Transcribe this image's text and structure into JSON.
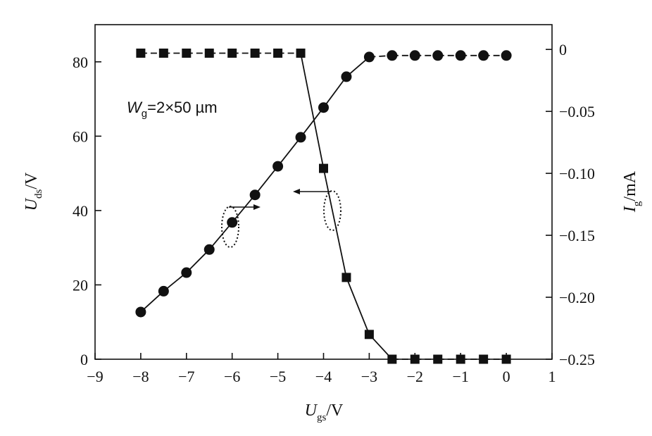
{
  "chart_data": {
    "type": "line",
    "x_axis": {
      "label_main": "U",
      "label_sub": "gs",
      "label_unit": "/V",
      "range": [
        -9,
        1
      ],
      "ticks": [
        -9,
        -8,
        -7,
        -6,
        -5,
        -4,
        -3,
        -2,
        -1,
        0,
        1
      ],
      "tick_labels": [
        "−9",
        "−8",
        "−7",
        "−6",
        "−5",
        "−4",
        "−3",
        "−2",
        "−1",
        "0",
        "1"
      ]
    },
    "y_left": {
      "label_main": "U",
      "label_sub": "ds",
      "label_unit": "/V",
      "range": [
        0,
        90
      ],
      "ticks": [
        0,
        20,
        40,
        60,
        80
      ],
      "tick_labels": [
        "0",
        "20",
        "40",
        "60",
        "80"
      ]
    },
    "y_right": {
      "label_main": "I",
      "label_sub": "g",
      "label_unit": "/mA",
      "range": [
        -0.25,
        0.02
      ],
      "ticks": [
        0,
        -0.05,
        -0.1,
        -0.15,
        -0.2,
        -0.25
      ],
      "tick_labels": [
        "0",
        "−0.05",
        "−0.10",
        "−0.15",
        "−0.20",
        "−0.25"
      ]
    },
    "annotation": {
      "main": "W",
      "sub": "g",
      "rest": "=2×50 µm"
    },
    "grid": false,
    "series": [
      {
        "marker": "circle",
        "axis": "left",
        "line_style": "solid-then-dashed",
        "x": [
          -8,
          -7.5,
          -7,
          -6.5,
          -6,
          -5.5,
          -5,
          -4.5,
          -4,
          -3.5,
          -3,
          -2.5,
          -2,
          -1.5,
          -1,
          -0.5,
          0
        ],
        "y": [
          12.7,
          18.3,
          23.3,
          29.5,
          36.8,
          44.2,
          51.9,
          59.7,
          67.7,
          76.0,
          81.3,
          81.7,
          81.7,
          81.7,
          81.7,
          81.7,
          81.7
        ]
      },
      {
        "marker": "square",
        "axis": "right",
        "line_style": "dashed-then-solid",
        "x": [
          -8,
          -7.5,
          -7,
          -6.5,
          -6,
          -5.5,
          -5,
          -4.5,
          -4,
          -3.5,
          -3,
          -2.5,
          -2,
          -1.5,
          -1,
          -0.5,
          0
        ],
        "y": [
          -0.003,
          -0.003,
          -0.003,
          -0.003,
          -0.003,
          -0.003,
          -0.003,
          -0.003,
          -0.096,
          -0.184,
          -0.23,
          -0.25,
          -0.25,
          -0.25,
          -0.25,
          -0.25,
          -0.25
        ]
      }
    ]
  }
}
